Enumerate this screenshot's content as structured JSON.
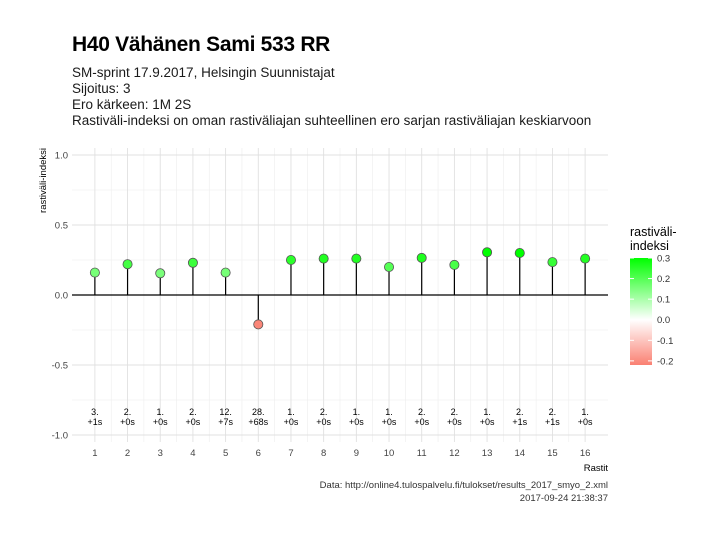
{
  "header": {
    "title": "H40 Vähänen Sami 533 RR",
    "subtitle_lines": [
      "SM-sprint 17.9.2017, Helsingin Suunnistajat",
      "Sijoitus: 3",
      "Ero kärkeen: 1M 2S",
      "Rastiväli-indeksi on oman rastiväliajan suhteellinen ero sarjan rastiväliajan keskiarvoon"
    ]
  },
  "caption": {
    "source": "Data: http://online4.tulospalvelu.fi/tulokset/results_2017_smyo_2.xml",
    "timestamp": "2017-09-24 21:38:37"
  },
  "legend": {
    "title_line1": "rastiväli-",
    "title_line2": "indeksi",
    "ticks": [
      "0.3",
      "0.2",
      "0.1",
      "0.0",
      "-0.1",
      "-0.2"
    ],
    "tick_values": [
      0.3,
      0.2,
      0.1,
      0.0,
      -0.1,
      -0.2
    ],
    "range": [
      -0.22,
      0.3
    ],
    "color_high": "#00ff00",
    "color_mid": "#ffffff",
    "color_low": "#fa8072"
  },
  "chart_data": {
    "type": "lollipop",
    "xlabel": "Rastit",
    "ylabel": "rastiväli-indeksi",
    "ylim": [
      -1.05,
      1.05
    ],
    "yticks": [
      "-1.0",
      "-0.5",
      "0.0",
      "0.5",
      "1.0"
    ],
    "ytick_values": [
      -1.0,
      -0.5,
      0.0,
      0.5,
      1.0
    ],
    "x": [
      1,
      2,
      3,
      4,
      5,
      6,
      7,
      8,
      9,
      10,
      11,
      12,
      13,
      14,
      15,
      16
    ],
    "values": [
      0.16,
      0.22,
      0.155,
      0.23,
      0.16,
      -0.21,
      0.25,
      0.26,
      0.26,
      0.2,
      0.265,
      0.215,
      0.305,
      0.3,
      0.235,
      0.26
    ],
    "rank_labels": [
      "3.",
      "2.",
      "1.",
      "2.",
      "12.",
      "28.",
      "1.",
      "2.",
      "1.",
      "1.",
      "2.",
      "2.",
      "1.",
      "2.",
      "2.",
      "1."
    ],
    "diff_labels": [
      "+1s",
      "+0s",
      "+0s",
      "+0s",
      "+7s",
      "+68s",
      "+0s",
      "+0s",
      "+0s",
      "+0s",
      "+0s",
      "+0s",
      "+0s",
      "+1s",
      "+1s",
      "+0s"
    ],
    "grid": true,
    "legend_position": "right",
    "colors": {
      "point_high": "#00ff00",
      "point_mid": "#ffffff",
      "point_low": "#fa8072",
      "stem": "#000000",
      "grid": "#e0e0e0"
    }
  }
}
